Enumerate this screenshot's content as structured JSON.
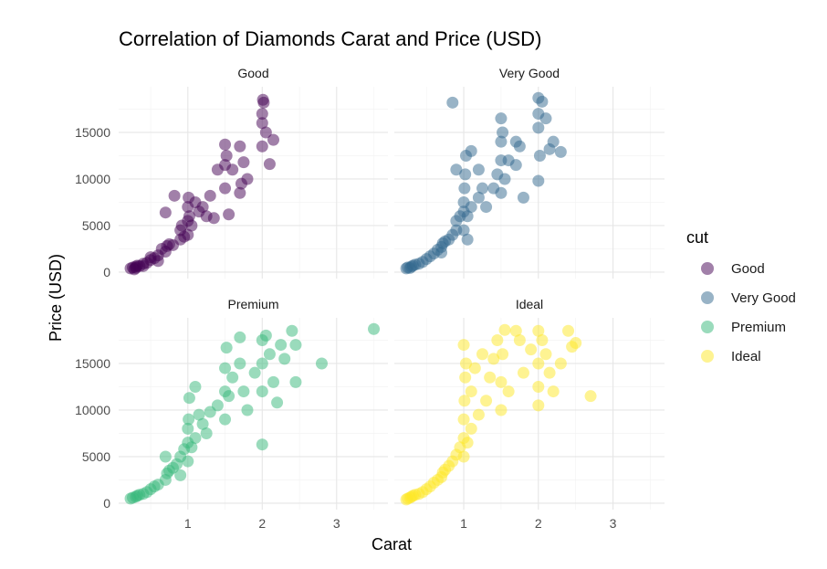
{
  "chart_data": {
    "type": "scatter",
    "title": "Correlation of Diamonds Carat and Price (USD)",
    "xlabel": "Carat",
    "ylabel": "Price (USD)",
    "xlim": [
      0.07,
      3.69
    ],
    "ylim": [
      -690,
      19900
    ],
    "x_ticks": [
      1,
      2,
      3
    ],
    "y_ticks": [
      0,
      5000,
      10000,
      15000
    ],
    "grid": true,
    "legend": {
      "title": "cut",
      "placement": "right"
    },
    "facets": [
      {
        "name": "Good",
        "color": "#440154",
        "points": [
          [
            0.23,
            400
          ],
          [
            0.26,
            500
          ],
          [
            0.3,
            600
          ],
          [
            0.3,
            450
          ],
          [
            0.32,
            700
          ],
          [
            0.35,
            650
          ],
          [
            0.4,
            900
          ],
          [
            0.45,
            1000
          ],
          [
            0.5,
            1300
          ],
          [
            0.5,
            1600
          ],
          [
            0.55,
            1500
          ],
          [
            0.6,
            1800
          ],
          [
            0.65,
            2500
          ],
          [
            0.7,
            2200
          ],
          [
            0.72,
            2800
          ],
          [
            0.75,
            3000
          ],
          [
            0.8,
            2900
          ],
          [
            0.9,
            3500
          ],
          [
            0.9,
            4500
          ],
          [
            0.92,
            5000
          ],
          [
            1.0,
            4000
          ],
          [
            1.0,
            5500
          ],
          [
            1.0,
            7000
          ],
          [
            1.01,
            8000
          ],
          [
            1.02,
            6000
          ],
          [
            1.05,
            5000
          ],
          [
            1.1,
            7500
          ],
          [
            1.15,
            6500
          ],
          [
            1.2,
            7000
          ],
          [
            1.25,
            6000
          ],
          [
            1.3,
            8200
          ],
          [
            1.35,
            5800
          ],
          [
            1.4,
            11000
          ],
          [
            1.5,
            11500
          ],
          [
            1.5,
            13700
          ],
          [
            1.5,
            9000
          ],
          [
            1.52,
            12500
          ],
          [
            1.6,
            11000
          ],
          [
            1.7,
            13500
          ],
          [
            1.7,
            8500
          ],
          [
            1.72,
            9500
          ],
          [
            1.75,
            11800
          ],
          [
            1.8,
            10000
          ],
          [
            1.55,
            6200
          ],
          [
            2.0,
            13500
          ],
          [
            2.0,
            16000
          ],
          [
            2.0,
            17000
          ],
          [
            2.01,
            18500
          ],
          [
            2.02,
            18200
          ],
          [
            2.05,
            15000
          ],
          [
            2.1,
            11600
          ],
          [
            2.15,
            14200
          ],
          [
            0.82,
            8200
          ],
          [
            0.7,
            6400
          ],
          [
            0.28,
            300
          ],
          [
            0.4,
            650
          ],
          [
            0.6,
            1200
          ],
          [
            0.95,
            3800
          ]
        ]
      },
      {
        "name": "Very Good",
        "color": "#31688E",
        "points": [
          [
            0.23,
            400
          ],
          [
            0.25,
            500
          ],
          [
            0.28,
            450
          ],
          [
            0.3,
            600
          ],
          [
            0.32,
            700
          ],
          [
            0.35,
            800
          ],
          [
            0.4,
            900
          ],
          [
            0.45,
            1100
          ],
          [
            0.5,
            1400
          ],
          [
            0.55,
            1700
          ],
          [
            0.6,
            2000
          ],
          [
            0.65,
            2400
          ],
          [
            0.7,
            2700
          ],
          [
            0.72,
            3100
          ],
          [
            0.75,
            3300
          ],
          [
            0.8,
            3500
          ],
          [
            0.85,
            4000
          ],
          [
            0.9,
            4500
          ],
          [
            0.9,
            5500
          ],
          [
            0.95,
            6000
          ],
          [
            1.0,
            4500
          ],
          [
            1.0,
            6500
          ],
          [
            1.0,
            7500
          ],
          [
            1.01,
            9000
          ],
          [
            1.02,
            10500
          ],
          [
            1.03,
            12500
          ],
          [
            1.05,
            6000
          ],
          [
            1.1,
            7000
          ],
          [
            1.1,
            13000
          ],
          [
            1.2,
            8000
          ],
          [
            1.2,
            11000
          ],
          [
            1.25,
            9000
          ],
          [
            1.3,
            7000
          ],
          [
            1.4,
            9000
          ],
          [
            1.45,
            10500
          ],
          [
            1.5,
            8500
          ],
          [
            1.5,
            12000
          ],
          [
            1.5,
            14000
          ],
          [
            1.5,
            16500
          ],
          [
            1.52,
            15000
          ],
          [
            1.55,
            10000
          ],
          [
            1.6,
            12000
          ],
          [
            1.7,
            11500
          ],
          [
            1.7,
            14000
          ],
          [
            1.75,
            13500
          ],
          [
            1.8,
            8000
          ],
          [
            0.85,
            18200
          ],
          [
            0.9,
            11000
          ],
          [
            2.0,
            18700
          ],
          [
            2.0,
            17000
          ],
          [
            2.0,
            15500
          ],
          [
            2.02,
            12500
          ],
          [
            2.05,
            18300
          ],
          [
            2.1,
            16500
          ],
          [
            2.0,
            9800
          ],
          [
            2.15,
            13200
          ],
          [
            2.2,
            14000
          ],
          [
            2.3,
            12900
          ],
          [
            0.7,
            2100
          ],
          [
            1.05,
            3500
          ]
        ]
      },
      {
        "name": "Premium",
        "color": "#35B779",
        "points": [
          [
            0.23,
            500
          ],
          [
            0.26,
            600
          ],
          [
            0.3,
            700
          ],
          [
            0.32,
            800
          ],
          [
            0.35,
            900
          ],
          [
            0.4,
            1000
          ],
          [
            0.45,
            1200
          ],
          [
            0.5,
            1500
          ],
          [
            0.55,
            1800
          ],
          [
            0.6,
            2000
          ],
          [
            0.7,
            2500
          ],
          [
            0.72,
            3200
          ],
          [
            0.75,
            3500
          ],
          [
            0.8,
            3800
          ],
          [
            0.85,
            4200
          ],
          [
            0.9,
            5000
          ],
          [
            0.95,
            5800
          ],
          [
            1.0,
            4500
          ],
          [
            1.0,
            6500
          ],
          [
            1.0,
            8000
          ],
          [
            1.01,
            9000
          ],
          [
            1.02,
            11300
          ],
          [
            1.05,
            6000
          ],
          [
            1.1,
            7000
          ],
          [
            1.1,
            12500
          ],
          [
            1.15,
            9500
          ],
          [
            1.2,
            8500
          ],
          [
            1.25,
            7500
          ],
          [
            1.3,
            9800
          ],
          [
            1.4,
            10500
          ],
          [
            1.5,
            9000
          ],
          [
            1.5,
            12000
          ],
          [
            1.5,
            14500
          ],
          [
            1.52,
            16700
          ],
          [
            1.55,
            11500
          ],
          [
            1.6,
            13500
          ],
          [
            1.7,
            17800
          ],
          [
            1.7,
            15000
          ],
          [
            1.75,
            12000
          ],
          [
            1.8,
            10000
          ],
          [
            1.9,
            14000
          ],
          [
            2.0,
            6300
          ],
          [
            2.0,
            12000
          ],
          [
            2.0,
            15000
          ],
          [
            2.0,
            17500
          ],
          [
            2.05,
            18000
          ],
          [
            2.1,
            16000
          ],
          [
            2.15,
            13000
          ],
          [
            2.2,
            10800
          ],
          [
            2.25,
            17000
          ],
          [
            2.3,
            15500
          ],
          [
            2.4,
            18500
          ],
          [
            2.45,
            17000
          ],
          [
            2.45,
            13000
          ],
          [
            2.8,
            15000
          ],
          [
            3.5,
            18700
          ],
          [
            0.7,
            5000
          ],
          [
            0.9,
            3000
          ]
        ]
      },
      {
        "name": "Ideal",
        "color": "#FDE725",
        "points": [
          [
            0.23,
            400
          ],
          [
            0.25,
            500
          ],
          [
            0.28,
            600
          ],
          [
            0.3,
            700
          ],
          [
            0.32,
            800
          ],
          [
            0.35,
            900
          ],
          [
            0.4,
            1000
          ],
          [
            0.45,
            1200
          ],
          [
            0.5,
            1500
          ],
          [
            0.55,
            1800
          ],
          [
            0.6,
            2200
          ],
          [
            0.7,
            2800
          ],
          [
            0.72,
            3300
          ],
          [
            0.75,
            3600
          ],
          [
            0.8,
            4000
          ],
          [
            0.85,
            4500
          ],
          [
            0.9,
            5200
          ],
          [
            0.95,
            6000
          ],
          [
            1.0,
            5000
          ],
          [
            1.0,
            7000
          ],
          [
            1.0,
            9000
          ],
          [
            1.01,
            11000
          ],
          [
            1.02,
            13500
          ],
          [
            1.03,
            15000
          ],
          [
            1.0,
            17000
          ],
          [
            1.05,
            6500
          ],
          [
            1.1,
            8000
          ],
          [
            1.1,
            12000
          ],
          [
            1.15,
            14500
          ],
          [
            1.2,
            9500
          ],
          [
            1.25,
            16000
          ],
          [
            1.3,
            11000
          ],
          [
            1.35,
            13500
          ],
          [
            1.4,
            15500
          ],
          [
            1.45,
            17500
          ],
          [
            1.5,
            10000
          ],
          [
            1.5,
            13000
          ],
          [
            1.52,
            16000
          ],
          [
            1.55,
            18600
          ],
          [
            1.6,
            12000
          ],
          [
            1.7,
            18500
          ],
          [
            1.75,
            17500
          ],
          [
            1.8,
            14000
          ],
          [
            1.9,
            16500
          ],
          [
            2.0,
            10500
          ],
          [
            2.0,
            12500
          ],
          [
            2.0,
            15000
          ],
          [
            2.0,
            18500
          ],
          [
            2.05,
            17500
          ],
          [
            2.1,
            16000
          ],
          [
            2.15,
            14000
          ],
          [
            2.2,
            12000
          ],
          [
            2.3,
            15000
          ],
          [
            2.4,
            18500
          ],
          [
            2.45,
            16800
          ],
          [
            2.5,
            17200
          ],
          [
            2.7,
            11500
          ],
          [
            0.65,
            2500
          ]
        ]
      }
    ]
  }
}
